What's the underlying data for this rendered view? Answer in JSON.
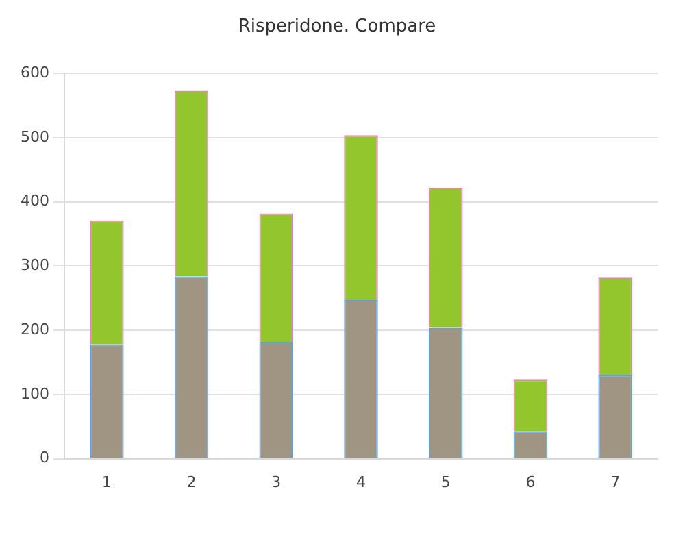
{
  "chart_data": {
    "type": "bar",
    "title": "Risperidone. Compare",
    "stacked": true,
    "categories": [
      "1",
      "2",
      "3",
      "4",
      "5",
      "6",
      "7"
    ],
    "series": [
      {
        "color": "#a09482",
        "values": [
          178,
          284,
          182,
          247,
          204,
          43,
          130
        ]
      },
      {
        "color": "#92c62c",
        "values": [
          193,
          289,
          200,
          257,
          218,
          80,
          152
        ]
      }
    ],
    "ylim": [
      0,
      600
    ],
    "yticks": [
      0,
      100,
      200,
      300,
      400,
      500,
      600
    ],
    "grid": "y",
    "legend": false
  }
}
